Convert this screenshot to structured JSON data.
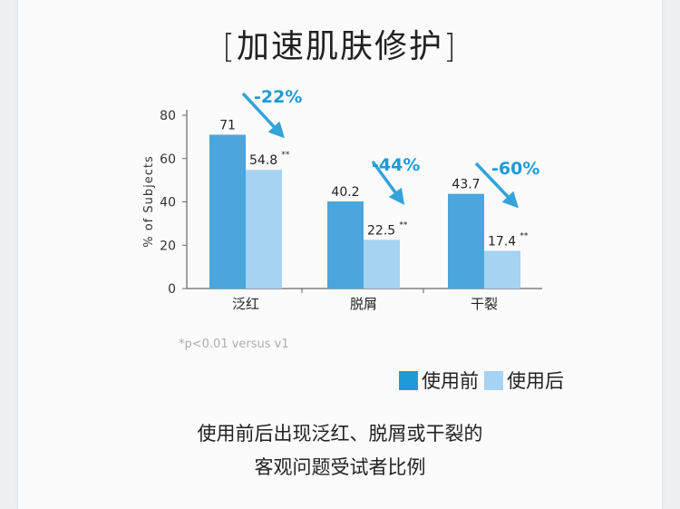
{
  "title": "加速肌肤修护",
  "title_brackets": {
    "open": "[",
    "close": "]"
  },
  "footnote": "*p<0.01 versus v1",
  "caption_lines": [
    "使用前后出现泛红、脱屑或干裂的",
    "客观问题受试者比例"
  ],
  "colors": {
    "before": "#4aa6dc",
    "after": "#a6d3f1",
    "arrow": "#1e9ad6",
    "axis": "#666666"
  },
  "chart_data": {
    "type": "bar",
    "categories": [
      "泛红",
      "脱屑",
      "干裂"
    ],
    "series": [
      {
        "name": "使用前",
        "values": [
          71,
          40.2,
          43.7
        ],
        "labels": [
          "71",
          "40.2",
          "43.7"
        ]
      },
      {
        "name": "使用后",
        "values": [
          54.8,
          22.5,
          17.4
        ],
        "labels": [
          "54.8",
          "22.5",
          "17.4"
        ],
        "marker": "**"
      }
    ],
    "changes": [
      "-22%",
      "-44%",
      "-60%"
    ],
    "ylabel": "% of Subjects",
    "ylim": [
      0,
      80
    ],
    "yticks": [
      0,
      20,
      40,
      60,
      80
    ],
    "legend_position": "bottom-right",
    "grid": false
  }
}
